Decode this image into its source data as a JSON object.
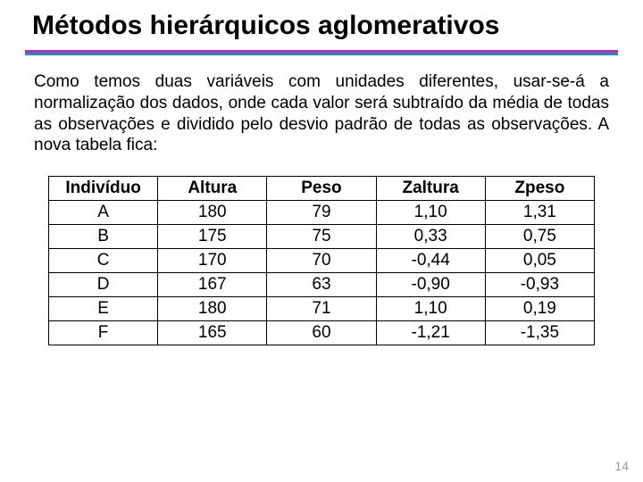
{
  "title": "Métodos hierárquicos aglomerativos",
  "paragraph": "Como temos duas variáveis com unidades diferentes, usar-se-á a normalização dos dados, onde cada valor será subtraído da média de todas as observações e dividido pelo desvio padrão de todas as observações. A nova tabela fica:",
  "divider": {
    "top_color": "#9a3cc9",
    "bottom_color": "#00a0a0"
  },
  "table": {
    "columns": [
      "Indivíduo",
      "Altura",
      "Peso",
      "Zaltura",
      "Zpeso"
    ],
    "rows": [
      [
        "A",
        "180",
        "79",
        "1,10",
        "1,31"
      ],
      [
        "B",
        "175",
        "75",
        "0,33",
        "0,75"
      ],
      [
        "C",
        "170",
        "70",
        "-0,44",
        "0,05"
      ],
      [
        "D",
        "167",
        "63",
        "-0,90",
        "-0,93"
      ],
      [
        "E",
        "180",
        "71",
        "1,10",
        "0,19"
      ],
      [
        "F",
        "165",
        "60",
        "-1,21",
        "-1,35"
      ]
    ],
    "header_fontweight": "bold",
    "cell_align": "center",
    "border_color": "#000000",
    "background_color": "#ffffff",
    "font_size_pt": 14
  },
  "page_number": "14",
  "styles": {
    "title_fontsize": 30,
    "body_fontsize": 19,
    "title_color": "#000000",
    "body_color": "#000000",
    "page_num_color": "#9a9a9a",
    "background_color": "#ffffff"
  }
}
